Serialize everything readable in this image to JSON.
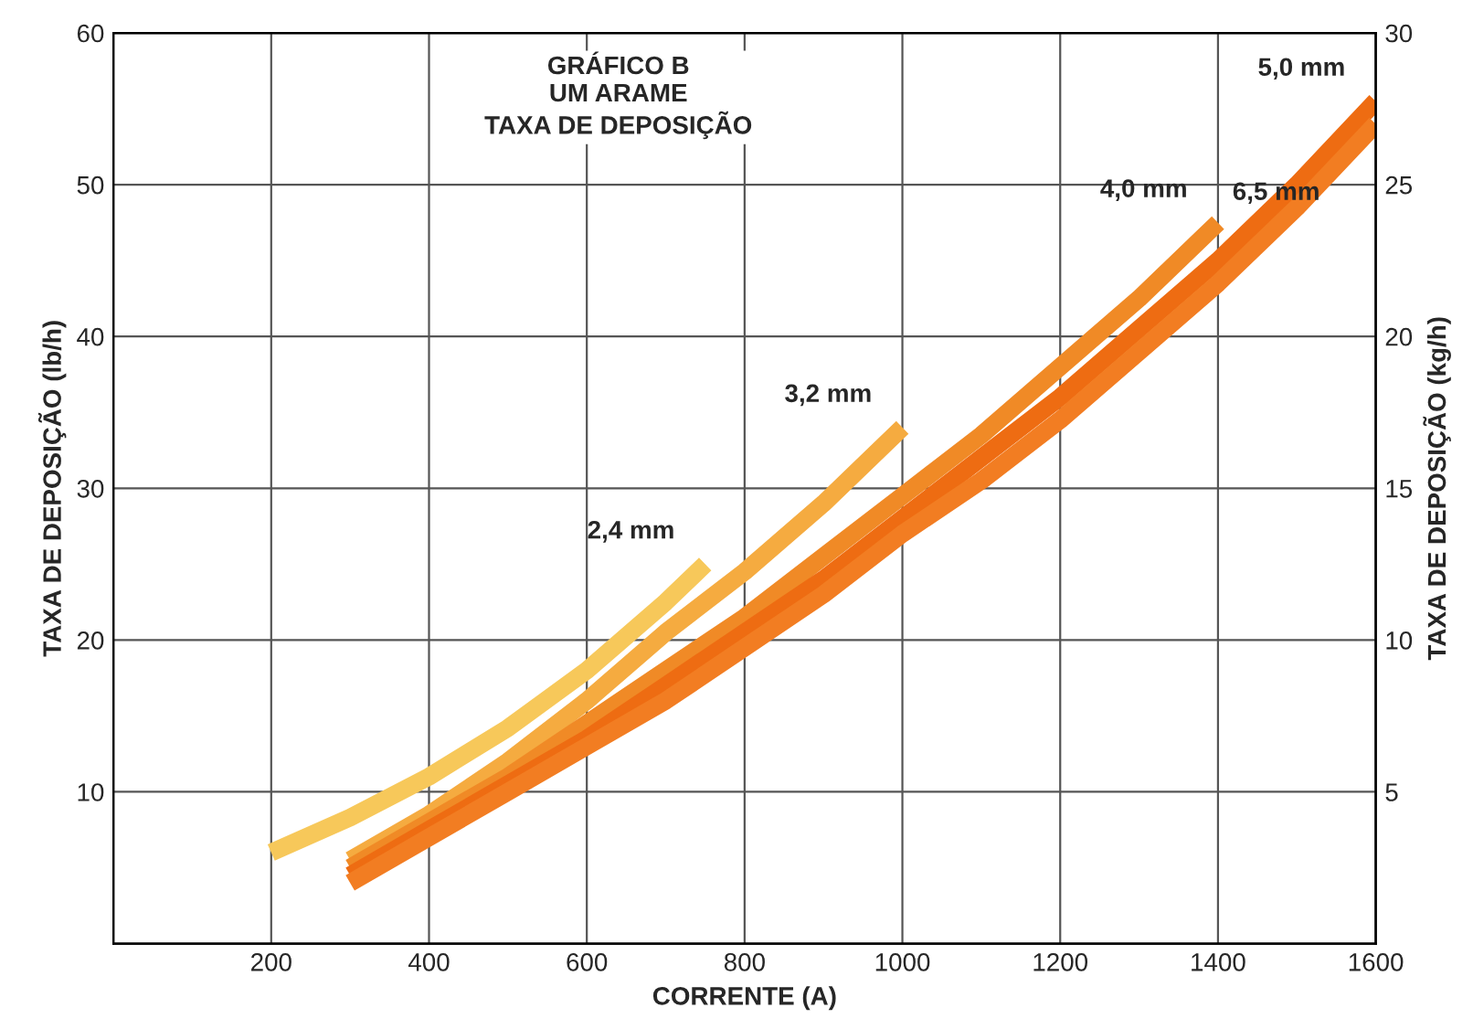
{
  "chart_data": {
    "type": "line",
    "title": "GRÁFICO B\nUM ARAME\nTAXA DE DEPOSIÇÃO",
    "xlabel": "CORRENTE (A)",
    "ylabel": "TAXA DE DEPOSIÇÃO (lb/h)",
    "y2label": "TAXA DE DEPOSIÇÃO (kg/h)",
    "xlim": [
      0,
      1600
    ],
    "xticks": [
      200,
      400,
      600,
      800,
      1000,
      1200,
      1400,
      1600
    ],
    "ylim": [
      0,
      60
    ],
    "yticks": [
      10,
      20,
      30,
      40,
      50,
      60
    ],
    "y2lim": [
      0,
      30
    ],
    "y2ticks": [
      5,
      10,
      15,
      20,
      25,
      30
    ],
    "grid": true,
    "line_style": "solid",
    "marker": "none",
    "series": [
      {
        "name": "2,4 mm",
        "color": "#f7c85a",
        "x": [
          200,
          300,
          400,
          500,
          600,
          700,
          750
        ],
        "values": [
          6,
          8.3,
          11,
          14.2,
          18,
          22.5,
          25
        ]
      },
      {
        "name": "3,2 mm",
        "color": "#f5ab40",
        "x": [
          300,
          400,
          500,
          600,
          700,
          800,
          900,
          1000
        ],
        "values": [
          5.5,
          8.5,
          12,
          16,
          20.5,
          24.5,
          29,
          34
        ]
      },
      {
        "name": "4,0 mm",
        "color": "#f08a26",
        "x": [
          300,
          400,
          500,
          600,
          700,
          800,
          900,
          1000,
          1100,
          1200,
          1300,
          1400
        ],
        "values": [
          5,
          8,
          11,
          14.5,
          18,
          21.5,
          25.5,
          29.5,
          33.5,
          38,
          42.5,
          47.5
        ]
      },
      {
        "name": "5,0 mm",
        "color": "#ee6c12",
        "x": [
          300,
          400,
          500,
          600,
          700,
          800,
          900,
          1000,
          1100,
          1200,
          1300,
          1400,
          1500,
          1600
        ],
        "values": [
          4.5,
          7.5,
          10.5,
          13.5,
          17,
          20.5,
          24,
          28,
          32,
          36,
          40.5,
          45,
          50,
          55.5
        ]
      },
      {
        "name": "6,5 mm",
        "color": "#f27d22",
        "x": [
          300,
          400,
          500,
          600,
          700,
          800,
          900,
          1000,
          1100,
          1200,
          1300,
          1400,
          1500,
          1600
        ],
        "values": [
          4,
          7,
          10,
          13,
          16,
          19.5,
          23,
          27,
          30.5,
          34.5,
          39,
          43.5,
          48.5,
          54
        ]
      }
    ]
  }
}
